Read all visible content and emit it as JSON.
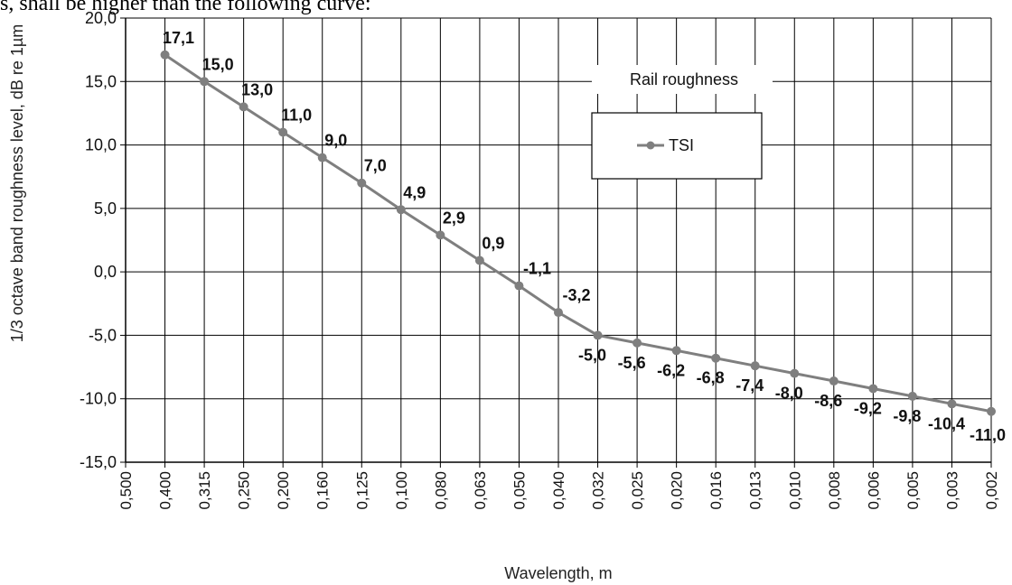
{
  "header_text": "s, shall be higher than the following curve:",
  "chart_data": {
    "type": "line",
    "title": "Rail roughness",
    "xlabel": "Wavelength, m",
    "ylabel": "1/3 octave band roughness level, dB re 1µm",
    "ylim": [
      -15,
      20
    ],
    "ytick_step": 5,
    "yticks": [
      "20,0",
      "15,0",
      "10,0",
      "5,0",
      "0,0",
      "-5,0",
      "-10,0",
      "-15,0"
    ],
    "categories": [
      "0,500",
      "0,400",
      "0,315",
      "0,250",
      "0,200",
      "0,160",
      "0,125",
      "0,100",
      "0,080",
      "0,063",
      "0,050",
      "0,040",
      "0,032",
      "0,025",
      "0,020",
      "0,016",
      "0,013",
      "0,010",
      "0,008",
      "0,006",
      "0,005",
      "0,003",
      "0,002"
    ],
    "grid": true,
    "legend_position": "top-right",
    "series": [
      {
        "name": "TSI",
        "color": "#7f7f7f",
        "values": [
          null,
          17.1,
          15.0,
          13.0,
          11.0,
          9.0,
          7.0,
          4.9,
          2.9,
          0.9,
          -1.1,
          -3.2,
          -5.0,
          -5.6,
          -6.2,
          -6.8,
          -7.4,
          -8.0,
          -8.6,
          -9.2,
          -9.8,
          -10.4,
          -11.0
        ],
        "labels": [
          null,
          "17,1",
          "15,0",
          "13,0",
          "11,0",
          "9,0",
          "7,0",
          "4,9",
          "2,9",
          "0,9",
          "-1,1",
          "-3,2",
          "-5,0",
          "-5,6",
          "-6,2",
          "-6,8",
          "-7,4",
          "-8,0",
          "-8,6",
          "-9,2",
          "-9,8",
          "-10,4",
          "-11,0"
        ]
      }
    ]
  }
}
